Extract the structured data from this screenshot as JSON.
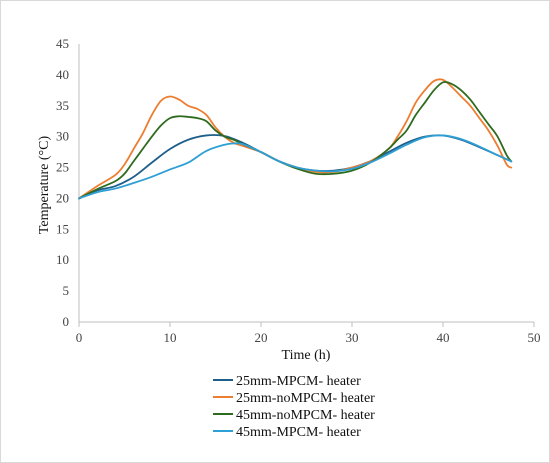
{
  "chart_data": {
    "type": "line",
    "xlabel": "Time (h)",
    "ylabel": "Temperature (°C)",
    "xlim": [
      0,
      50
    ],
    "ylim": [
      0,
      45
    ],
    "xticks": [
      0,
      10,
      20,
      30,
      40,
      50
    ],
    "yticks": [
      0,
      5,
      10,
      15,
      20,
      25,
      30,
      35,
      40,
      45
    ],
    "grid": false,
    "legend_position": "bottom",
    "series": [
      {
        "name": "25mm-MPCM- heater",
        "color": "#1f5f8b",
        "x": [
          0,
          2,
          4,
          6,
          8,
          10,
          12,
          14,
          16,
          18,
          20,
          22,
          24,
          26,
          28,
          30,
          32,
          34,
          36,
          38,
          40,
          42,
          44,
          46,
          47.5
        ],
        "y": [
          20,
          21.3,
          22.0,
          23.5,
          25.8,
          28.0,
          29.5,
          30.2,
          30.1,
          29.0,
          27.5,
          26.0,
          25.0,
          24.5,
          24.5,
          25.0,
          26.0,
          27.5,
          29.0,
          30.0,
          30.2,
          29.5,
          28.3,
          27.0,
          26.0
        ]
      },
      {
        "name": "25mm-noMPCM- heater",
        "color": "#ed7d31",
        "x": [
          0,
          2,
          4,
          5,
          6,
          7,
          8,
          9,
          10,
          11,
          12,
          13,
          14,
          15,
          16,
          17,
          18,
          20,
          22,
          24,
          26,
          28,
          30,
          32,
          34,
          35,
          36,
          37,
          38,
          39,
          40,
          41,
          42,
          43,
          44,
          45,
          46,
          47,
          47.5
        ],
        "y": [
          20,
          22.0,
          23.8,
          25.5,
          28.0,
          30.5,
          33.5,
          35.8,
          36.5,
          36.0,
          35.0,
          34.5,
          33.5,
          31.5,
          30.0,
          29.0,
          28.5,
          27.5,
          26.0,
          25.0,
          24.3,
          24.3,
          25.0,
          26.0,
          28.0,
          30.0,
          32.5,
          35.5,
          37.5,
          39.0,
          39.2,
          38.0,
          36.5,
          35.0,
          33.0,
          31.0,
          28.5,
          25.5,
          25.0
        ]
      },
      {
        "name": "45mm-noMPCM- heater",
        "color": "#2e6b1f",
        "x": [
          0,
          2,
          4,
          5,
          6,
          7,
          8,
          9,
          10,
          11,
          12,
          13,
          14,
          15,
          16,
          17,
          18,
          20,
          22,
          24,
          26,
          28,
          30,
          32,
          34,
          35,
          36,
          37,
          38,
          39,
          40,
          41,
          42,
          43,
          44,
          45,
          46,
          47,
          47.5
        ],
        "y": [
          20,
          21.5,
          22.8,
          24.0,
          26.0,
          28.0,
          30.0,
          31.8,
          33.0,
          33.3,
          33.2,
          33.0,
          32.5,
          31.0,
          30.0,
          29.5,
          28.8,
          27.5,
          26.0,
          24.8,
          24.0,
          24.0,
          24.5,
          25.8,
          28.0,
          29.5,
          31.0,
          33.5,
          35.5,
          37.5,
          38.8,
          38.5,
          37.5,
          36.0,
          34.0,
          32.0,
          30.0,
          27.0,
          26.0
        ]
      },
      {
        "name": "45mm-MPCM- heater",
        "color": "#2e9fd4",
        "x": [
          0,
          2,
          4,
          6,
          8,
          10,
          12,
          14,
          16,
          17,
          18,
          20,
          22,
          24,
          26,
          28,
          30,
          32,
          34,
          36,
          38,
          40,
          42,
          44,
          46,
          47.5
        ],
        "y": [
          20,
          21.0,
          21.6,
          22.5,
          23.5,
          24.7,
          25.8,
          27.7,
          28.7,
          28.9,
          28.8,
          27.5,
          26.0,
          25.0,
          24.5,
          24.4,
          24.8,
          25.8,
          27.2,
          28.7,
          29.9,
          30.2,
          29.6,
          28.4,
          27.0,
          26.0
        ]
      }
    ]
  }
}
